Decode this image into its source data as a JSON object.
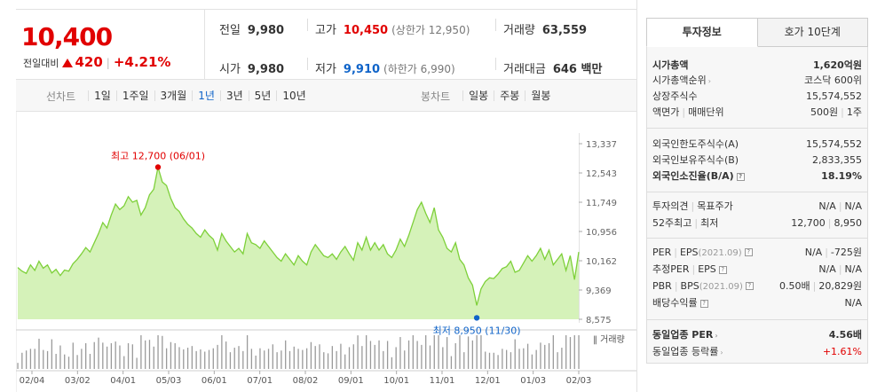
{
  "quote": {
    "price": "10,400",
    "change_label": "전일대비",
    "change_amount": "420",
    "change_pct": "+4.21%",
    "cells": {
      "prev_close": {
        "label": "전일",
        "value": "9,980"
      },
      "high": {
        "label": "고가",
        "value": "10,450",
        "sub": "(상한가 12,950)"
      },
      "volume": {
        "label": "거래량",
        "value": "63,559"
      },
      "open": {
        "label": "시가",
        "value": "9,980"
      },
      "low": {
        "label": "저가",
        "value": "9,910",
        "sub": "(하한가 6,990)"
      },
      "amount": {
        "label": "거래대금",
        "value": "646 백만"
      }
    }
  },
  "tabs": {
    "line_label": "선차트",
    "line_items": [
      "1일",
      "1주일",
      "3개월",
      "1년",
      "3년",
      "5년",
      "10년"
    ],
    "line_active": "1년",
    "candle_label": "봉차트",
    "candle_items": [
      "일봉",
      "주봉",
      "월봉"
    ]
  },
  "chart_data": {
    "type": "area",
    "title": "",
    "y_ticks": [
      "13,337",
      "12,543",
      "11,749",
      "10,956",
      "10,162",
      "9,369",
      "8,575"
    ],
    "ylim": [
      8575,
      13337
    ],
    "x_ticks": [
      "02/04",
      "03/02",
      "04/01",
      "05/03",
      "06/01",
      "07/01",
      "08/02",
      "09/01",
      "10/01",
      "11/01",
      "12/01",
      "01/03",
      "02/03"
    ],
    "values": [
      9980,
      9880,
      9820,
      10050,
      9900,
      10150,
      9960,
      10050,
      9830,
      9930,
      9760,
      9910,
      9880,
      10080,
      10200,
      10350,
      10520,
      10400,
      10650,
      10900,
      11200,
      11050,
      11400,
      11700,
      11550,
      11650,
      11900,
      11750,
      11800,
      11400,
      11600,
      11950,
      12100,
      12700,
      12300,
      12200,
      11850,
      11600,
      11500,
      11300,
      11150,
      11050,
      10900,
      10800,
      11000,
      10850,
      10750,
      10450,
      10900,
      10700,
      10550,
      10400,
      10500,
      10350,
      10900,
      10650,
      10600,
      10500,
      10700,
      10550,
      10400,
      10250,
      10150,
      10350,
      10200,
      10050,
      10300,
      10150,
      10050,
      10400,
      10600,
      10450,
      10300,
      10250,
      10350,
      10200,
      10400,
      10550,
      10350,
      10180,
      10650,
      10450,
      10800,
      10450,
      10650,
      10450,
      10600,
      10350,
      10250,
      10450,
      10750,
      10550,
      10850,
      11200,
      11550,
      11750,
      11450,
      11200,
      11600,
      11000,
      10800,
      10500,
      10400,
      10650,
      10200,
      10050,
      9700,
      9500,
      8950,
      9400,
      9600,
      9700,
      9680,
      9800,
      9950,
      10000,
      10150,
      9850,
      9900,
      10100,
      10300,
      10150,
      10300,
      10500,
      10200,
      10450,
      10050,
      10200,
      10350,
      9900,
      10300,
      9650,
      10400
    ],
    "high_label": "최고 12,700 (06/01)",
    "low_label": "최저 8,950 (11/30)",
    "volume_label": "거래량",
    "line_color": "#7ed03a",
    "fill_color": "#d5f2b9",
    "high_color": "#e10000",
    "low_color": "#1064c9"
  },
  "side": {
    "tab_invest": "투자정보",
    "tab_orderbook": "호가 10단계",
    "market_cap": {
      "label": "시가총액",
      "value": "1,620억원"
    },
    "market_cap_rank": {
      "label": "시가총액순위",
      "value": "코스닥 600위"
    },
    "shares": {
      "label": "상장주식수",
      "value": "15,574,552"
    },
    "par": {
      "label": "액면가",
      "label2": "매매단위",
      "value": "500원",
      "value2": "1주"
    },
    "foreign_limit": {
      "label": "외국인한도주식수(A)",
      "value": "15,574,552"
    },
    "foreign_hold": {
      "label": "외국인보유주식수(B)",
      "value": "2,833,355"
    },
    "foreign_ratio": {
      "label": "외국인소진율(B/A)",
      "value": "18.19%"
    },
    "opinion": {
      "label": "투자의견",
      "label2": "목표주가",
      "value": "N/A",
      "value2": "N/A"
    },
    "week52": {
      "label": "52주최고",
      "label2": "최저",
      "value": "12,700",
      "value2": "8,950"
    },
    "per": {
      "label": "PER",
      "label2": "EPS",
      "em": "(2021.09)",
      "value": "N/A",
      "value2": "-725원"
    },
    "est_per": {
      "label": "추정PER",
      "label2": "EPS",
      "value": "N/A",
      "value2": "N/A"
    },
    "pbr": {
      "label": "PBR",
      "label2": "BPS",
      "em": "(2021.09)",
      "value": "0.50배",
      "value2": "20,829원"
    },
    "dividend": {
      "label": "배당수익률",
      "value": "N/A"
    },
    "sector_per": {
      "label": "동일업종 PER",
      "value": "4.56배"
    },
    "sector_change": {
      "label": "동일업종 등락률",
      "value": "+1.61%"
    }
  }
}
